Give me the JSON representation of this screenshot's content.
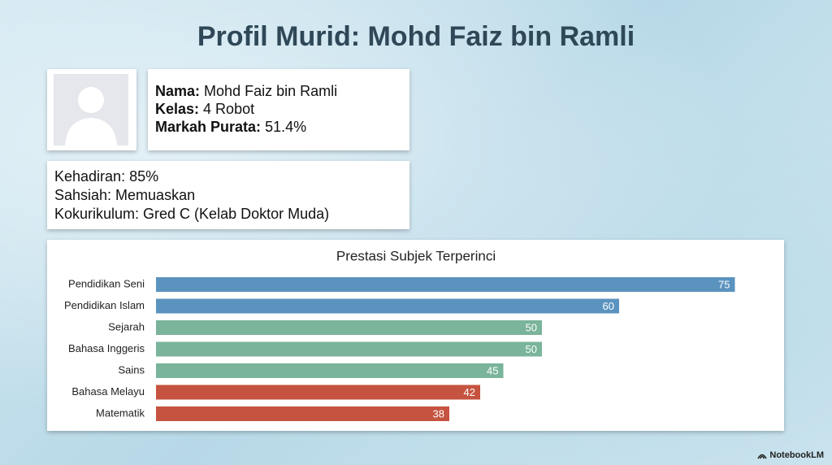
{
  "title": "Profil Murid: Mohd Faiz bin Ramli",
  "profile": {
    "fields": [
      {
        "label": "Nama:",
        "value": "Mohd Faiz bin Ramli"
      },
      {
        "label": "Kelas:",
        "value": "4 Robot"
      },
      {
        "label": "Markah Purata:",
        "value": "51.4%"
      }
    ]
  },
  "info": {
    "lines": [
      "Kehadiran: 85%",
      "Sahsiah: Memuaskan",
      "Kokurikulum: Gred C (Kelab Doktor Muda)"
    ]
  },
  "chart_data": {
    "type": "hbar",
    "title": "Prestasi Subjek Terperinci",
    "categories": [
      "Pendidikan Seni",
      "Pendidikan Islam",
      "Sejarah",
      "Bahasa Inggeris",
      "Sains",
      "Bahasa Melayu",
      "Matematik"
    ],
    "values": [
      75,
      60,
      50,
      50,
      45,
      42,
      38
    ],
    "colors": [
      "#5b93bf",
      "#5b93bf",
      "#79b49b",
      "#79b49b",
      "#79b49b",
      "#c5533f",
      "#c5533f"
    ],
    "xlim": [
      0,
      80
    ]
  },
  "watermark": "NotebookLM"
}
